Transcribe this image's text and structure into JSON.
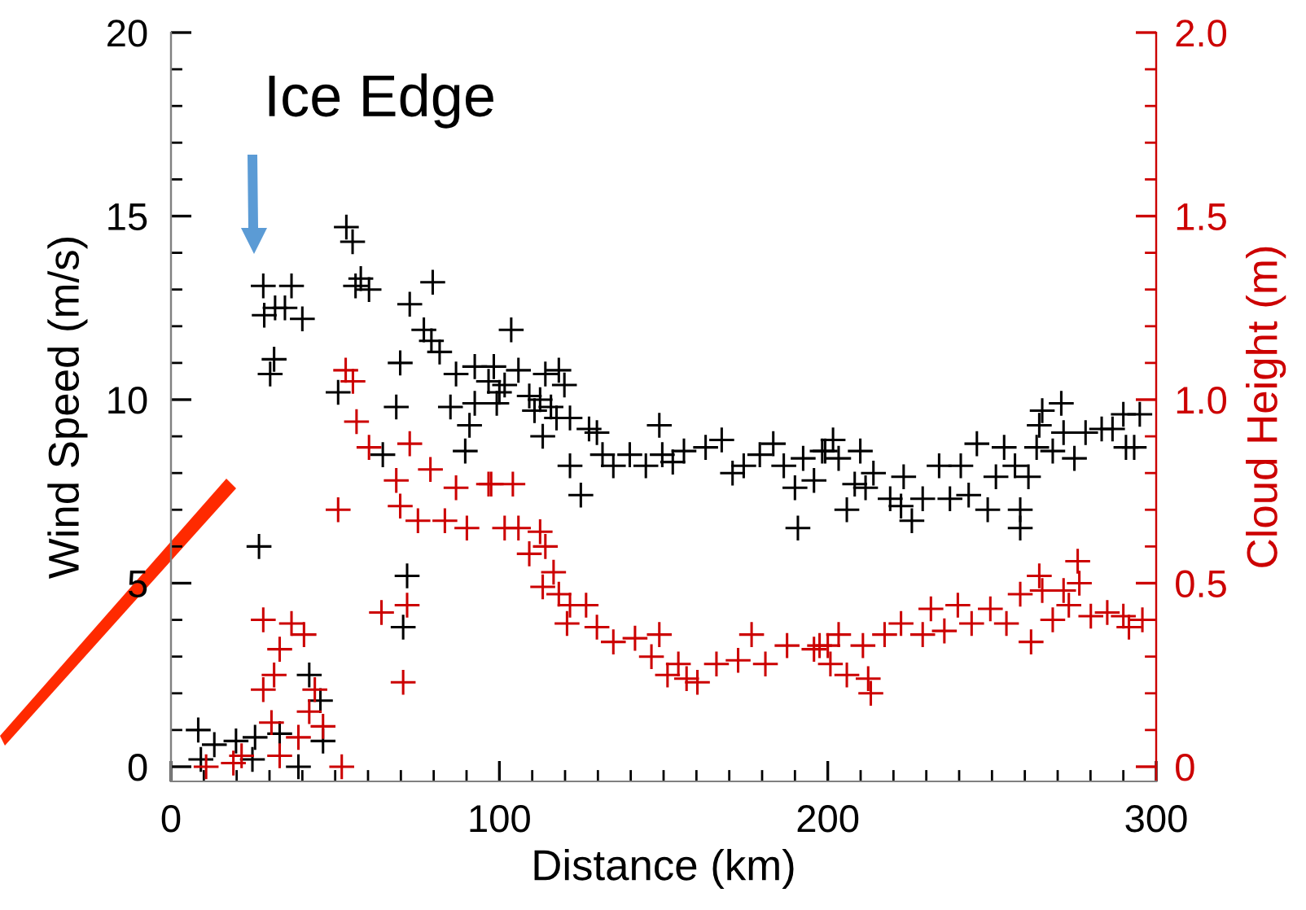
{
  "chart_data": {
    "type": "scatter",
    "xlabel": "Distance (km)",
    "ylabel": "Wind Speed (m/s)",
    "y2label": "Cloud Height (m)",
    "marker": "cross",
    "grid": false,
    "legend": false,
    "xlim": [
      0,
      300
    ],
    "ylim": [
      -0.4,
      20
    ],
    "y2lim": [
      -0.04,
      2.0
    ],
    "xticks": [
      0,
      {
        "value": 10,
        "label": null
      },
      {
        "value": 20,
        "label": null
      },
      {
        "value": 30,
        "label": null
      },
      {
        "value": 40,
        "label": null
      },
      {
        "value": 50,
        "label": null
      },
      {
        "value": 60,
        "label": null
      },
      {
        "value": 70,
        "label": null
      },
      {
        "value": 80,
        "label": null
      },
      {
        "value": 90,
        "label": null
      },
      100,
      {
        "value": 110,
        "label": null
      },
      {
        "value": 120,
        "label": null
      },
      {
        "value": 130,
        "label": null
      },
      {
        "value": 140,
        "label": null
      },
      {
        "value": 150,
        "label": null
      },
      {
        "value": 160,
        "label": null
      },
      {
        "value": 170,
        "label": null
      },
      {
        "value": 180,
        "label": null
      },
      {
        "value": 190,
        "label": null
      },
      200,
      {
        "value": 210,
        "label": null
      },
      {
        "value": 220,
        "label": null
      },
      {
        "value": 230,
        "label": null
      },
      {
        "value": 240,
        "label": null
      },
      {
        "value": 250,
        "label": null
      },
      {
        "value": 260,
        "label": null
      },
      {
        "value": 270,
        "label": null
      },
      {
        "value": 280,
        "label": null
      },
      {
        "value": 290,
        "label": null
      },
      300
    ],
    "yticks": [
      0,
      {
        "value": 1,
        "label": null
      },
      {
        "value": 2,
        "label": null
      },
      {
        "value": 3,
        "label": null
      },
      {
        "value": 4,
        "label": null
      },
      5,
      {
        "value": 6,
        "label": null
      },
      {
        "value": 7,
        "label": null
      },
      {
        "value": 8,
        "label": null
      },
      {
        "value": 9,
        "label": null
      },
      10,
      {
        "value": 11,
        "label": null
      },
      {
        "value": 12,
        "label": null
      },
      {
        "value": 13,
        "label": null
      },
      {
        "value": 14,
        "label": null
      },
      15,
      {
        "value": 16,
        "label": null
      },
      {
        "value": 17,
        "label": null
      },
      {
        "value": 18,
        "label": null
      },
      {
        "value": 19,
        "label": null
      },
      20
    ],
    "y2ticks": [
      {
        "value": 0,
        "label": "0"
      },
      {
        "value": 0.1,
        "label": null
      },
      {
        "value": 0.2,
        "label": null
      },
      {
        "value": 0.3,
        "label": null
      },
      {
        "value": 0.4,
        "label": null
      },
      {
        "value": 0.5,
        "label": "0.5"
      },
      {
        "value": 0.6,
        "label": null
      },
      {
        "value": 0.7,
        "label": null
      },
      {
        "value": 0.8,
        "label": null
      },
      {
        "value": 0.9,
        "label": null
      },
      {
        "value": 1.0,
        "label": "1.0"
      },
      {
        "value": 1.1,
        "label": null
      },
      {
        "value": 1.2,
        "label": null
      },
      {
        "value": 1.3,
        "label": null
      },
      {
        "value": 1.4,
        "label": null
      },
      {
        "value": 1.5,
        "label": "1.5"
      },
      {
        "value": 1.6,
        "label": null
      },
      {
        "value": 1.7,
        "label": null
      },
      {
        "value": 1.8,
        "label": null
      },
      {
        "value": 1.9,
        "label": null
      },
      {
        "value": 2.0,
        "label": "2.0"
      }
    ],
    "annotations": [
      "Ice Edge"
    ],
    "series": [
      {
        "color": "#000000",
        "x": [
          28.1,
          36.7,
          28.4,
          31.7,
          34.7,
          40,
          31.4,
          30.2,
          26.8,
          53.4,
          55.3,
          57.8,
          60.3,
          56.2,
          79.7,
          72.7,
          77,
          79.3,
          81.8,
          69.8,
          50.9,
          68.6,
          64.5,
          89.6,
          90.9,
          85.1,
          92.5,
          96.7,
          92.5,
          86.8,
          71.9,
          70.7,
          42.1,
          45.5,
          46.3,
          33.1,
          8.3,
          13.2,
          19.8,
          25.6,
          9.1,
          38.8,
          24.8,
          103.6,
          98.3,
          105.8,
          114,
          118.1,
          100,
          101.6,
          99.2,
          109.1,
          112.4,
          119.8,
          110.7,
          115.7,
          113.2,
          117.4,
          121.5,
          127.3,
          129.7,
          124.8,
          121.5,
          131.4,
          134.7,
          139.7,
          144.6,
          148.7,
          149.6,
          152.8,
          156.2,
          162.8,
          167.7,
          171,
          174.4,
          179.3,
          183.4,
          186.6,
          190.9,
          190,
          192.5,
          195.8,
          199.2,
          198.3,
          201.6,
          203.3,
          209.9,
          208.2,
          213.9,
          205.8,
          211.5,
          219,
          222.3,
          225.6,
          228.9,
          223.1,
          233.9,
          240.5,
          245.4,
          237.2,
          242.9,
          248.7,
          258.6,
          258.6,
          251.2,
          253.7,
          257,
          261.1,
          265.3,
          271.1,
          264.4,
          268.5,
          271.8,
          275.1,
          278.5,
          283.4,
          286.7,
          290,
          295,
          293.3,
          290.8,
          263.6
        ],
        "values": [
          13.1,
          13.1,
          12.3,
          12.5,
          12.5,
          12.2,
          11.1,
          10.7,
          6.0,
          14.7,
          14.3,
          13.3,
          13.0,
          13.1,
          13.2,
          12.6,
          11.9,
          11.6,
          11.3,
          11.0,
          10.2,
          9.8,
          8.5,
          8.6,
          9.3,
          9.8,
          9.9,
          10.5,
          10.9,
          10.7,
          5.2,
          3.8,
          2.5,
          1.8,
          0.7,
          0.9,
          1.0,
          0.6,
          0.7,
          0.8,
          0.2,
          0.0,
          0.2,
          11.9,
          10.9,
          10.8,
          10.7,
          10.8,
          10.2,
          10.4,
          9.9,
          10.1,
          10.0,
          10.4,
          9.7,
          9.8,
          9.0,
          9.5,
          9.5,
          9.2,
          9.1,
          7.4,
          8.2,
          8.5,
          8.2,
          8.5,
          8.2,
          9.3,
          8.5,
          8.3,
          8.6,
          8.7,
          8.9,
          8.0,
          8.2,
          8.5,
          8.8,
          8.2,
          6.5,
          7.6,
          8.4,
          7.8,
          8.6,
          8.6,
          8.9,
          8.4,
          8.6,
          7.7,
          8.0,
          7.0,
          7.6,
          7.3,
          7.1,
          6.7,
          7.3,
          7.9,
          8.2,
          8.2,
          8.8,
          7.3,
          7.4,
          7.0,
          7.0,
          6.5,
          7.9,
          8.7,
          8.2,
          7.9,
          9.7,
          9.9,
          9.3,
          8.6,
          9.1,
          8.4,
          9.1,
          9.2,
          9.2,
          9.6,
          9.6,
          8.7,
          8.7,
          8.7
        ]
      },
      {
        "color": "#cc0000",
        "axis": "y2",
        "x": [
          53.2,
          55.4,
          56.5,
          60.3,
          72.7,
          68.6,
          79,
          50.9,
          69.8,
          75.2,
          83.4,
          90.1,
          96.7,
          86.8,
          64.1,
          71.9,
          70.7,
          28.1,
          36.7,
          40.5,
          33.1,
          31.4,
          28.1,
          43.8,
          42.1,
          46.3,
          30.6,
          38.8,
          33.1,
          21.5,
          10.7,
          19,
          52,
          97.5,
          104.1,
          101.6,
          105.8,
          112.4,
          109.1,
          114,
          116.5,
          113.2,
          118.1,
          121.5,
          126.4,
          120.6,
          129.7,
          134.7,
          141.3,
          148.7,
          146.3,
          151.2,
          157,
          160.3,
          154.5,
          166.1,
          172.7,
          176.8,
          181,
          187.6,
          195.8,
          200,
          197.5,
          203.3,
          200.8,
          205.8,
          212.3,
          213.1,
          210.7,
          217.3,
          222.3,
          228.9,
          235.5,
          231.4,
          239.6,
          243.8,
          249.5,
          254.4,
          258.6,
          261.9,
          264.4,
          265.3,
          268.5,
          271.8,
          273.4,
          276.1,
          276.6,
          280.1,
          285.1,
          290,
          291.7,
          295.8
        ],
        "values": [
          1.08,
          1.05,
          0.94,
          0.87,
          0.88,
          0.78,
          0.81,
          0.7,
          0.71,
          0.67,
          0.67,
          0.65,
          0.77,
          0.76,
          0.42,
          0.44,
          0.23,
          0.4,
          0.39,
          0.36,
          0.32,
          0.25,
          0.21,
          0.21,
          0.15,
          0.11,
          0.12,
          0.08,
          0.03,
          0.03,
          0.0,
          0.01,
          0.0,
          0.77,
          0.77,
          0.65,
          0.65,
          0.64,
          0.58,
          0.6,
          0.53,
          0.49,
          0.47,
          0.44,
          0.44,
          0.39,
          0.38,
          0.34,
          0.35,
          0.36,
          0.3,
          0.25,
          0.24,
          0.23,
          0.28,
          0.28,
          0.29,
          0.36,
          0.28,
          0.33,
          0.32,
          0.33,
          0.33,
          0.36,
          0.28,
          0.25,
          0.24,
          0.2,
          0.33,
          0.36,
          0.39,
          0.36,
          0.37,
          0.43,
          0.44,
          0.39,
          0.43,
          0.39,
          0.47,
          0.34,
          0.52,
          0.48,
          0.4,
          0.48,
          0.44,
          0.56,
          0.5,
          0.41,
          0.42,
          0.41,
          0.38,
          0.4
        ]
      }
    ]
  }
}
